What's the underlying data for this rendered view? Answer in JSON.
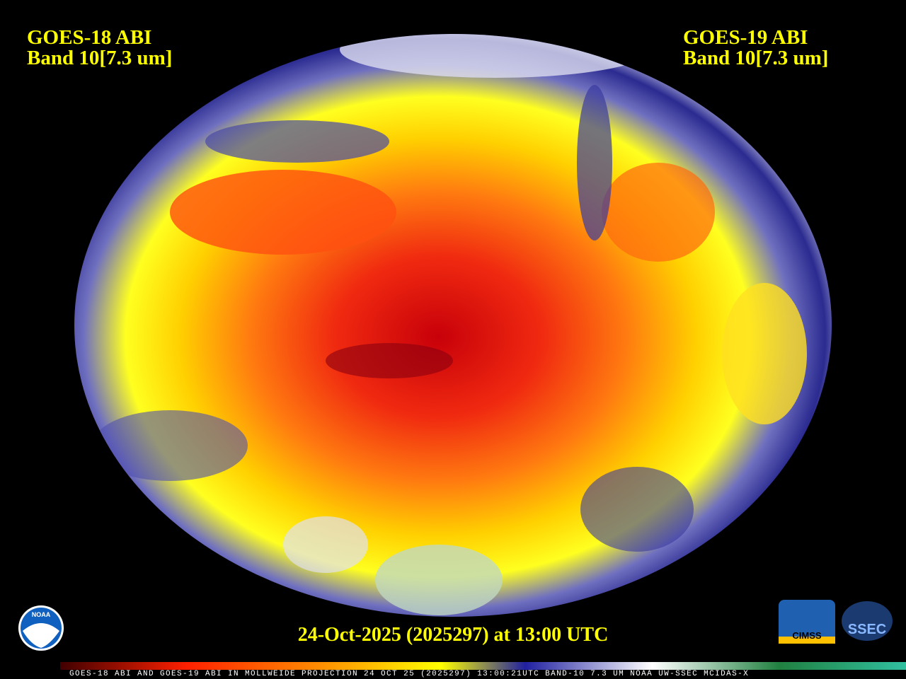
{
  "header": {
    "left": {
      "line1": "GOES-18 ABI",
      "line2": "Band 10[7.3 um]"
    },
    "right": {
      "line1": "GOES-19 ABI",
      "line2": "Band 10[7.3 um]"
    }
  },
  "timestamp": "24-Oct-2025 (2025297) at 13:00 UTC",
  "footer": "GOES-18 ABI AND GOES-19 ABI IN MOLLWEIDE PROJECTION 24 OCT 25 (2025297) 13:00:21UTC BAND-10 7.3 UM NOAA UW-SSEC MCIDAS-X",
  "logos": {
    "noaa": "NOAA",
    "cimss": "CIMSS",
    "ssec": "SSEC"
  }
}
